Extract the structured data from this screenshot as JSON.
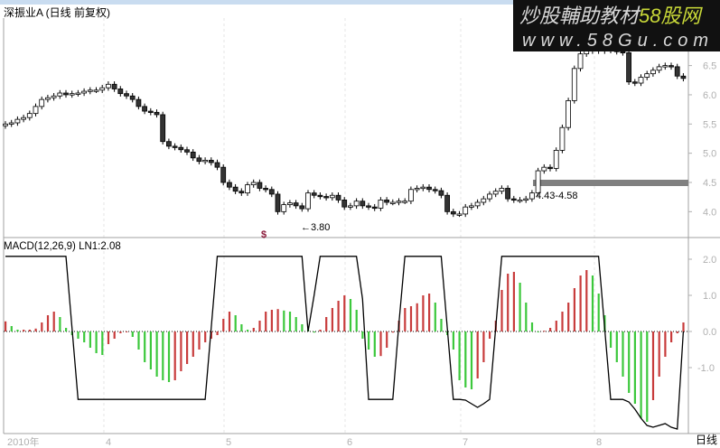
{
  "window": {
    "title": "深振业A (日线 前复权)"
  },
  "watermark": {
    "line1a": "炒股輔助教材",
    "line1b": "58股网",
    "line2": "www.58Gu.com"
  },
  "colors": {
    "up_bar": "#c83c3c",
    "down_bar": "#3cc83c",
    "candle": "#000000",
    "band": "#808080",
    "marker": "#8b1a3a"
  },
  "chart_data": [
    {
      "type": "candlestick",
      "title": "深振业A (日线 前复权)",
      "y_ticks": [
        "6.5",
        "6.0",
        "5.5",
        "5.0",
        "4.5",
        "4.0"
      ],
      "ylim": [
        3.7,
        6.9
      ],
      "x_ticks": [
        "2010年",
        "4",
        "5",
        "6",
        "7",
        "8"
      ],
      "close": [
        5.5,
        5.52,
        5.58,
        5.61,
        5.68,
        5.8,
        5.92,
        5.95,
        5.98,
        6.03,
        6.0,
        6.02,
        6.03,
        6.06,
        6.08,
        6.08,
        6.12,
        6.18,
        6.1,
        6.02,
        5.98,
        5.92,
        5.8,
        5.72,
        5.7,
        5.66,
        5.2,
        5.12,
        5.1,
        5.06,
        5.02,
        4.92,
        4.86,
        4.88,
        4.84,
        4.76,
        4.5,
        4.42,
        4.35,
        4.32,
        4.46,
        4.5,
        4.4,
        4.38,
        4.3,
        4.0,
        4.12,
        4.15,
        4.1,
        4.05,
        4.32,
        4.28,
        4.26,
        4.24,
        4.28,
        4.2,
        4.08,
        4.1,
        4.18,
        4.1,
        4.08,
        4.06,
        4.2,
        4.16,
        4.16,
        4.18,
        4.18,
        4.38,
        4.4,
        4.42,
        4.38,
        4.36,
        4.28,
        4.0,
        3.96,
        3.96,
        4.08,
        4.1,
        4.16,
        4.22,
        4.3,
        4.35,
        4.4,
        4.22,
        4.2,
        4.2,
        4.22,
        4.32,
        4.7,
        4.76,
        4.74,
        5.05,
        5.44,
        5.9,
        6.45,
        6.7,
        6.75,
        6.8,
        6.75,
        6.78,
        6.76,
        6.74,
        6.72,
        6.22,
        6.2,
        6.3,
        6.36,
        6.42,
        6.48,
        6.5,
        6.48,
        6.32,
        6.28
      ],
      "annotations": {
        "low_label": "←3.80",
        "range_label": "4.43-4.58",
        "signal_marker": "$"
      },
      "band": [
        4.5,
        4.58
      ]
    },
    {
      "type": "bar",
      "title": "MACD(12,26,9)  LN1:2.08",
      "y_ticks": [
        "2.0",
        "1.0",
        "0.0",
        "-1.0"
      ],
      "ylim": [
        -2.8,
        2.3
      ],
      "histogram": [
        0.28,
        0.15,
        0.05,
        0.05,
        0.05,
        0.08,
        0.25,
        0.45,
        0.55,
        0.4,
        0.1,
        -0.1,
        -0.2,
        -0.3,
        -0.45,
        -0.6,
        -0.65,
        -0.35,
        -0.2,
        -0.05,
        0,
        -0.15,
        -0.5,
        -0.85,
        -1.05,
        -1.25,
        -1.35,
        -1.4,
        -1.35,
        -1.1,
        -0.9,
        -0.7,
        -0.5,
        -0.3,
        -0.2,
        -0.1,
        0.35,
        0.55,
        0.45,
        0.2,
        0.05,
        0.1,
        0.3,
        0.55,
        0.6,
        0.62,
        0.58,
        0.55,
        0.4,
        0.2,
        0.05,
        -0.03,
        0.05,
        0.4,
        0.65,
        0.85,
        1.0,
        0.9,
        0.6,
        -0.2,
        -0.5,
        -0.7,
        -0.68,
        -0.45,
        -0.03,
        0.3,
        0.65,
        0.7,
        0.78,
        1.0,
        1.05,
        0.8,
        0.35,
        -0.1,
        -0.5,
        -1.35,
        -1.55,
        -1.6,
        -1.3,
        -0.85,
        -0.2,
        0.3,
        1.15,
        1.6,
        1.65,
        1.35,
        0.8,
        0.25,
        0,
        0.02,
        0.1,
        0.3,
        0.55,
        0.8,
        1.2,
        1.55,
        1.7,
        1.55,
        1.05,
        0.45,
        -0.45,
        -0.85,
        -1.25,
        -1.7,
        -2.0,
        -2.4,
        -2.5,
        -1.9,
        -1.25,
        -0.7,
        -0.3,
        -0.05,
        0.25
      ],
      "ln1": [
        2.08,
        2.08,
        2.08,
        2.08,
        2.08,
        2.08,
        2.08,
        2.08,
        2.08,
        2.08,
        2.08,
        0.1,
        -1.88,
        -1.88,
        -1.88,
        -1.88,
        -1.88,
        -1.88,
        -1.88,
        -1.88,
        -1.88,
        -1.88,
        -1.88,
        -1.88,
        -1.88,
        -1.88,
        -1.88,
        -1.88,
        -1.88,
        -1.88,
        -1.88,
        -1.88,
        -1.88,
        -1.88,
        0.1,
        2.08,
        2.08,
        2.08,
        2.08,
        2.08,
        2.08,
        2.08,
        2.08,
        2.08,
        2.08,
        2.08,
        2.08,
        2.08,
        2.08,
        2.08,
        0,
        1.0,
        2.08,
        2.08,
        2.08,
        2.08,
        2.08,
        2.08,
        2.08,
        0.9,
        -1.88,
        -1.88,
        -1.88,
        -1.88,
        -1.88,
        0.2,
        2.08,
        2.08,
        2.08,
        2.08,
        2.08,
        2.08,
        2.08,
        0.1,
        -1.88,
        -1.88,
        -1.9,
        -2.0,
        -2.1,
        -2.0,
        -1.88,
        0.1,
        2.08,
        2.08,
        2.08,
        2.08,
        2.08,
        2.08,
        2.08,
        2.08,
        2.08,
        2.08,
        2.08,
        2.08,
        2.08,
        2.08,
        2.08,
        2.08,
        2.08,
        0.1,
        -1.88,
        -1.88,
        -1.88,
        -1.95,
        -2.15,
        -2.4,
        -2.6,
        -2.65,
        -2.6,
        -2.55,
        -2.65,
        -2.7,
        0.0
      ]
    }
  ],
  "statusbar": {
    "period": "日线"
  }
}
